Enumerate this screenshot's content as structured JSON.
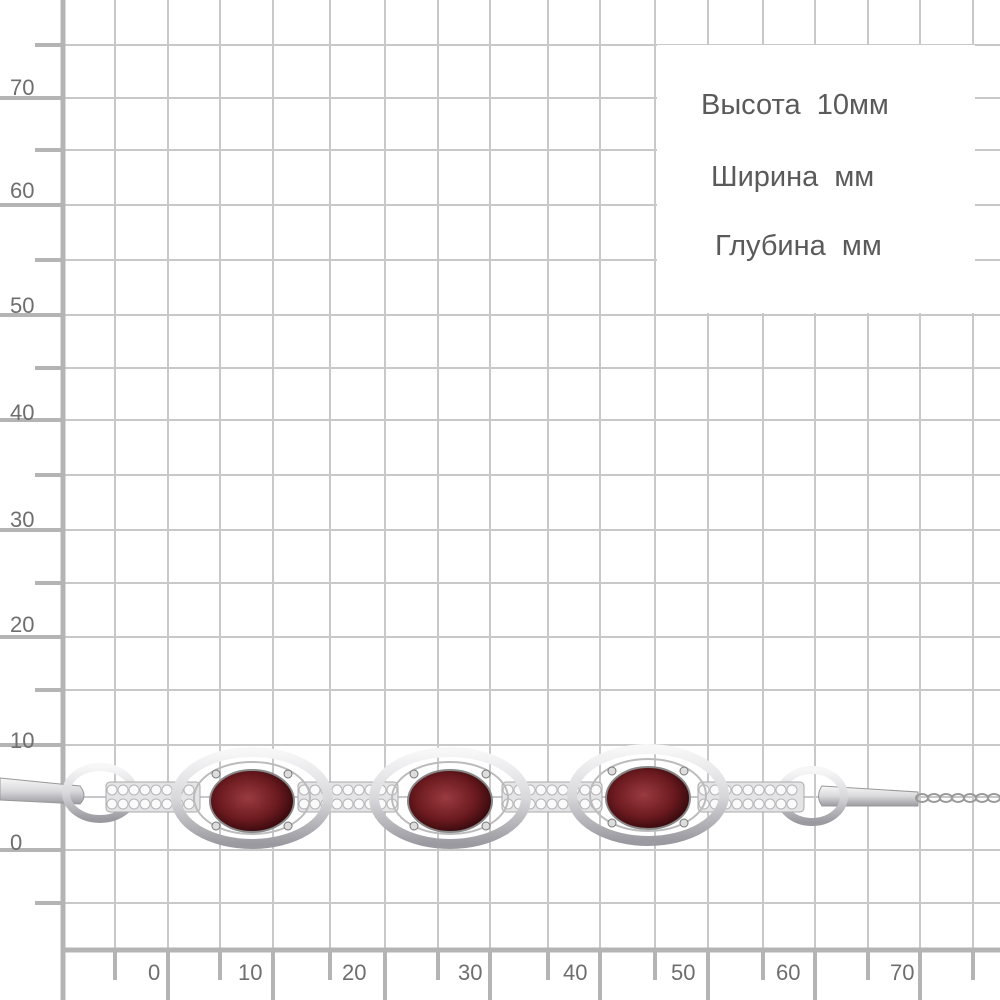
{
  "specs": {
    "height": "Высота  10мм",
    "width": "Ширина  мм",
    "depth": "Глубина  мм"
  },
  "ruler": {
    "y_labels": [
      "70",
      "60",
      "50",
      "40",
      "30",
      "20",
      "10",
      "0"
    ],
    "x_labels": [
      "0",
      "10",
      "20",
      "30",
      "40",
      "50",
      "60",
      "70"
    ]
  },
  "product": {
    "stone_count": 3,
    "stone_color": "#6b1a1f",
    "metal_color": "#d9d9dc"
  },
  "colors": {
    "grid": "#c8c8c8",
    "axis": "#b4b4b4",
    "text": "#6e6e6e"
  }
}
